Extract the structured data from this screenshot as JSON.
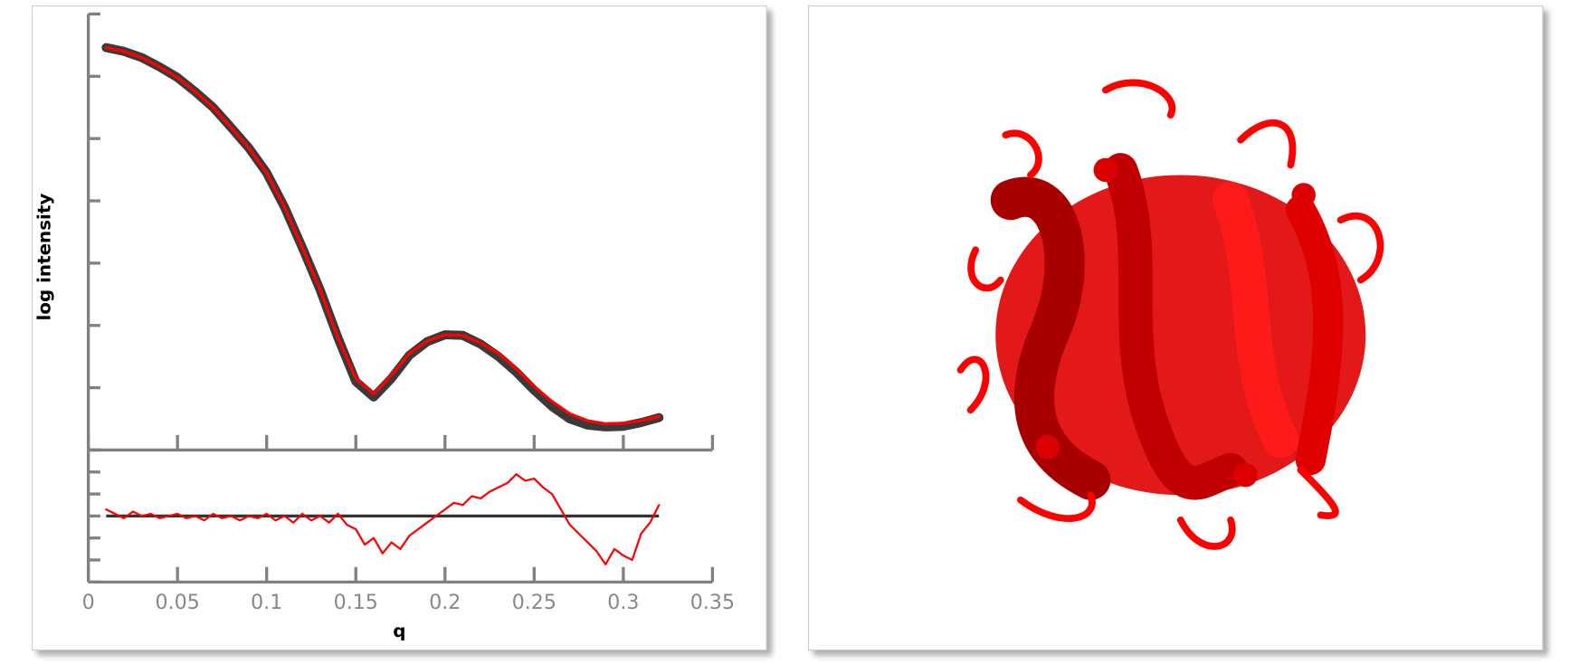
{
  "chart_data": [
    {
      "type": "line",
      "ylabel": "log intensity",
      "xlim": [
        0,
        0.35
      ],
      "xticks": [
        0,
        0.05,
        0.1,
        0.15,
        0.2,
        0.25,
        0.3,
        0.35
      ],
      "ylim": [
        0,
        7
      ],
      "yticks": [
        0,
        1,
        2,
        3,
        4,
        5,
        6,
        7
      ],
      "x": [
        0.01,
        0.02,
        0.03,
        0.04,
        0.05,
        0.06,
        0.07,
        0.08,
        0.09,
        0.1,
        0.11,
        0.12,
        0.13,
        0.14,
        0.15,
        0.16,
        0.17,
        0.18,
        0.19,
        0.2,
        0.21,
        0.22,
        0.23,
        0.24,
        0.25,
        0.26,
        0.27,
        0.28,
        0.29,
        0.3,
        0.31,
        0.32
      ],
      "series": [
        {
          "color": "#3a3a3a",
          "values": [
            6.46,
            6.4,
            6.3,
            6.15,
            5.98,
            5.75,
            5.5,
            5.18,
            4.85,
            4.45,
            3.9,
            3.25,
            2.57,
            1.8,
            1.1,
            0.85,
            1.15,
            1.52,
            1.74,
            1.85,
            1.84,
            1.7,
            1.5,
            1.25,
            0.96,
            0.7,
            0.5,
            0.4,
            0.37,
            0.38,
            0.44,
            0.52
          ]
        },
        {
          "color": "#ff0000",
          "values": [
            6.46,
            6.4,
            6.3,
            6.15,
            5.98,
            5.75,
            5.5,
            5.18,
            4.85,
            4.45,
            3.9,
            3.25,
            2.57,
            1.8,
            1.15,
            0.9,
            1.2,
            1.55,
            1.75,
            1.85,
            1.84,
            1.72,
            1.55,
            1.3,
            1.02,
            0.78,
            0.58,
            0.47,
            0.42,
            0.43,
            0.47,
            0.54
          ]
        }
      ]
    },
    {
      "type": "line",
      "xlabel": "q",
      "xlim": [
        0,
        0.35
      ],
      "xticks": [
        0,
        0.05,
        0.1,
        0.15,
        0.2,
        0.25,
        0.3,
        0.35
      ],
      "ylim": [
        -3,
        3
      ],
      "yticks": [
        -3,
        -2,
        -1,
        0,
        1,
        2,
        3
      ],
      "zero_line": 0,
      "x": [
        0.01,
        0.015,
        0.02,
        0.025,
        0.03,
        0.035,
        0.04,
        0.045,
        0.05,
        0.055,
        0.06,
        0.065,
        0.07,
        0.075,
        0.08,
        0.085,
        0.09,
        0.095,
        0.1,
        0.105,
        0.11,
        0.115,
        0.12,
        0.125,
        0.13,
        0.135,
        0.14,
        0.145,
        0.15,
        0.155,
        0.16,
        0.165,
        0.17,
        0.175,
        0.18,
        0.185,
        0.19,
        0.195,
        0.2,
        0.205,
        0.21,
        0.215,
        0.22,
        0.225,
        0.23,
        0.235,
        0.24,
        0.245,
        0.25,
        0.255,
        0.26,
        0.265,
        0.27,
        0.275,
        0.28,
        0.285,
        0.29,
        0.295,
        0.3,
        0.305,
        0.31,
        0.315,
        0.32
      ],
      "series": [
        {
          "color": "#ff0000",
          "values": [
            0.3,
            0.1,
            -0.1,
            0.2,
            0,
            0.1,
            -0.1,
            0,
            0.1,
            -0.1,
            0,
            -0.2,
            0.1,
            -0.1,
            0,
            -0.2,
            0,
            -0.1,
            0.1,
            -0.2,
            0,
            -0.3,
            0.1,
            -0.2,
            0,
            -0.3,
            0.1,
            -0.4,
            -0.6,
            -1.3,
            -1,
            -1.7,
            -1.2,
            -1.5,
            -0.9,
            -0.6,
            -0.3,
            0,
            0.3,
            0.6,
            0.5,
            0.9,
            0.8,
            1.1,
            1.3,
            1.5,
            1.9,
            1.6,
            1.7,
            1.3,
            1,
            0.3,
            -0.4,
            -0.8,
            -1.2,
            -1.6,
            -2.2,
            -1.5,
            -1.8,
            -2,
            -0.8,
            -0.3,
            0.5
          ]
        }
      ]
    }
  ]
}
